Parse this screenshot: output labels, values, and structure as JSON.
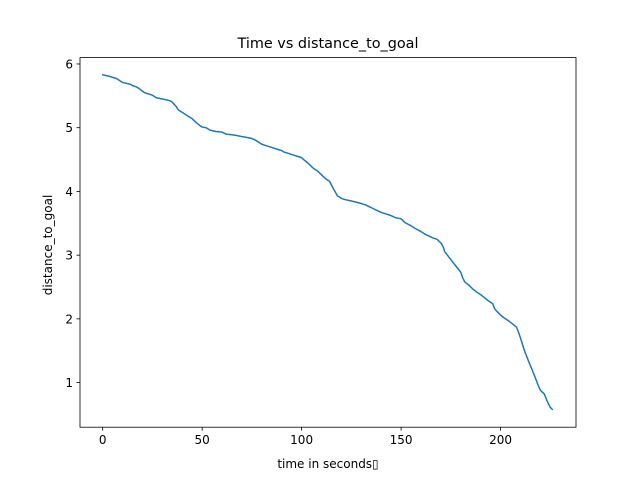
{
  "chart_data": {
    "type": "line",
    "title": "Time vs distance_to_goal",
    "xlabel": "time in seconds▯",
    "ylabel": "distance_to_goal",
    "xlim": [
      -11.4,
      237.9
    ],
    "ylim": [
      0.3,
      6.1
    ],
    "xticks": [
      0,
      50,
      100,
      150,
      200
    ],
    "xtick_labels": [
      "0",
      "50",
      "100",
      "150",
      "200"
    ],
    "yticks": [
      1,
      2,
      3,
      4,
      5,
      6
    ],
    "ytick_labels": [
      "1",
      "2",
      "3",
      "4",
      "5",
      "6"
    ],
    "grid": false,
    "legend": "none",
    "series": [
      {
        "color": "#1f77b4",
        "x": [
          0,
          3,
          6,
          7,
          10,
          14,
          15,
          17,
          18,
          21,
          23,
          25,
          27,
          30,
          33,
          34,
          35,
          37,
          38,
          40,
          42,
          45,
          47,
          49,
          50,
          52,
          54,
          57,
          60,
          62,
          65,
          67,
          70,
          72,
          75,
          77,
          79,
          80,
          82,
          84,
          87,
          90,
          91,
          94,
          97,
          100,
          101,
          103,
          105,
          106,
          108,
          110,
          112,
          114,
          116,
          118,
          120,
          122,
          125,
          130,
          132,
          134,
          136,
          138,
          140,
          142,
          145,
          147,
          150,
          152,
          155,
          157,
          160,
          162,
          164,
          166,
          168,
          169,
          170,
          171,
          172,
          174,
          176,
          178,
          180,
          181,
          182,
          184,
          186,
          188,
          190,
          192,
          194,
          196,
          197,
          198,
          200,
          202,
          204,
          206,
          208,
          209,
          210,
          211,
          212,
          214,
          216,
          218,
          219,
          220,
          221,
          222,
          223,
          224,
          225,
          226
        ],
        "y": [
          5.83,
          5.81,
          5.78,
          5.77,
          5.71,
          5.68,
          5.66,
          5.64,
          5.62,
          5.55,
          5.53,
          5.51,
          5.47,
          5.45,
          5.43,
          5.42,
          5.4,
          5.33,
          5.28,
          5.24,
          5.2,
          5.14,
          5.08,
          5.03,
          5.01,
          5.0,
          4.96,
          4.94,
          4.93,
          4.9,
          4.89,
          4.88,
          4.86,
          4.85,
          4.83,
          4.8,
          4.76,
          4.74,
          4.72,
          4.7,
          4.67,
          4.64,
          4.62,
          4.59,
          4.56,
          4.53,
          4.5,
          4.45,
          4.39,
          4.36,
          4.32,
          4.26,
          4.2,
          4.16,
          4.04,
          3.93,
          3.89,
          3.87,
          3.85,
          3.81,
          3.79,
          3.76,
          3.73,
          3.7,
          3.67,
          3.65,
          3.62,
          3.59,
          3.57,
          3.51,
          3.46,
          3.42,
          3.37,
          3.33,
          3.3,
          3.27,
          3.25,
          3.22,
          3.19,
          3.14,
          3.05,
          2.97,
          2.89,
          2.81,
          2.73,
          2.64,
          2.58,
          2.53,
          2.47,
          2.42,
          2.38,
          2.33,
          2.28,
          2.24,
          2.16,
          2.12,
          2.06,
          2.01,
          1.97,
          1.92,
          1.87,
          1.79,
          1.7,
          1.6,
          1.5,
          1.34,
          1.19,
          1.03,
          0.95,
          0.88,
          0.85,
          0.82,
          0.74,
          0.67,
          0.61,
          0.58
        ]
      }
    ]
  }
}
